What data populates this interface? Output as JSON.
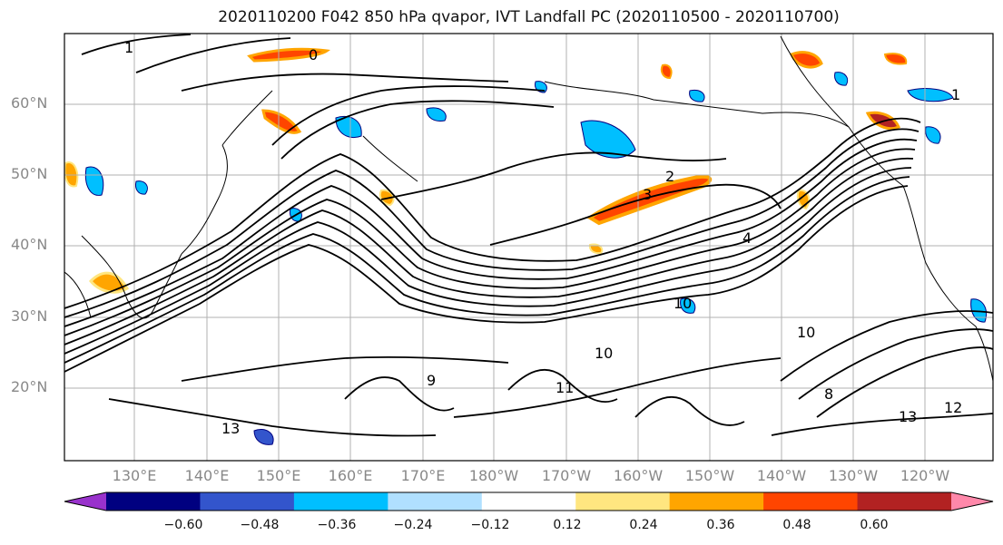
{
  "title": "2020110200 F042 850 hPa qvapor, IVT Landfall PC (2020110500 - 2020110700)",
  "lat_labels": [
    "60°N",
    "50°N",
    "40°N",
    "30°N",
    "20°N"
  ],
  "lon_labels": [
    "130°E",
    "140°E",
    "150°E",
    "160°E",
    "170°E",
    "180°W",
    "170°W",
    "160°W",
    "150°W",
    "140°W",
    "130°W",
    "120°W"
  ],
  "colorbar": {
    "ticks": [
      "−0.60",
      "−0.48",
      "−0.36",
      "−0.24",
      "−0.12",
      "0.12",
      "0.24",
      "0.36",
      "0.48",
      "0.60"
    ],
    "colors": [
      "#9932cc",
      "#000080",
      "#3355cc",
      "#00bfff",
      "#b0e0ff",
      "#ffffff",
      "#ffe680",
      "#ffa500",
      "#ff4500",
      "#b22222",
      "#ff88aa"
    ]
  },
  "contour_labels": [
    "1",
    "0",
    "1",
    "2",
    "3",
    "4",
    "10",
    "10",
    "10",
    "11",
    "12",
    "13",
    "13",
    "9",
    "8"
  ],
  "anomaly_colors": {
    "positive_weak": "#ffe680",
    "positive_mid": "#ffa500",
    "positive_strong": "#ff4500",
    "negative_weak": "#b0e0ff",
    "negative_mid": "#00bfff"
  }
}
